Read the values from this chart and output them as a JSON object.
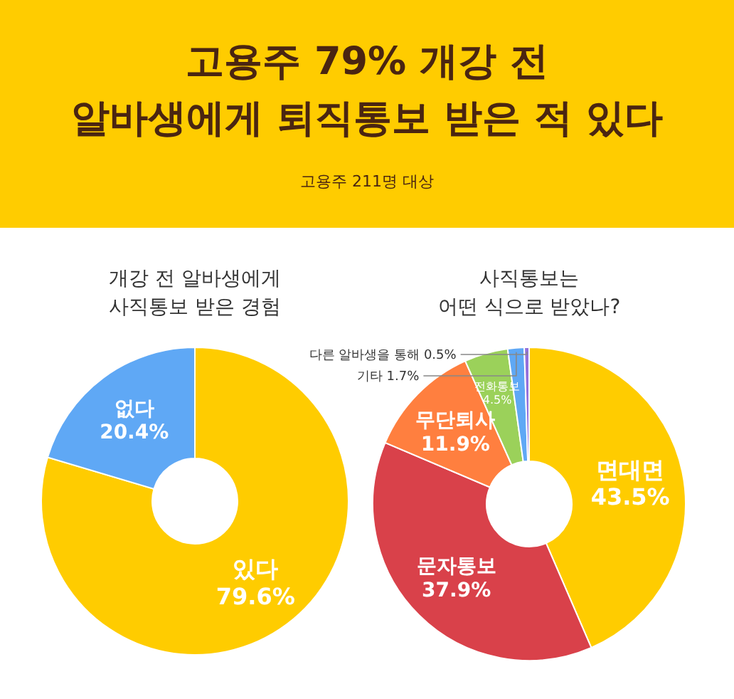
{
  "chart_data": [
    {
      "type": "other",
      "title": "고용주 79% 개강 전\n알바생에게 퇴직통보 받은 적 있다",
      "subtitle": "고용주 211명 대상",
      "color": "#ffcc00"
    },
    {
      "type": "donut",
      "title": "개강 전 알바생에게\n사직통보 받은 경험",
      "categories": [
        "있다",
        "없다"
      ],
      "values": [
        79.6,
        20.4
      ],
      "value_labels": [
        "79.6%",
        "20.4%"
      ],
      "colors": [
        "#ffcc00",
        "#5fa8f5"
      ]
    },
    {
      "type": "donut",
      "title": "사직통보는\n어떤 식으로 받았나?",
      "categories": [
        "면대면",
        "문자통보",
        "무단퇴사",
        "전화통보",
        "기타",
        "다른 알바생을 통해"
      ],
      "values": [
        43.5,
        37.9,
        11.9,
        4.5,
        1.7,
        0.5
      ],
      "value_labels": [
        "43.5%",
        "37.9%",
        "11.9%",
        "4.5%",
        "1.7%",
        "0.5%"
      ],
      "colors": [
        "#ffcc00",
        "#d9414a",
        "#ff7f3f",
        "#9bd15a",
        "#5fa8f5",
        "#9370db"
      ]
    }
  ]
}
